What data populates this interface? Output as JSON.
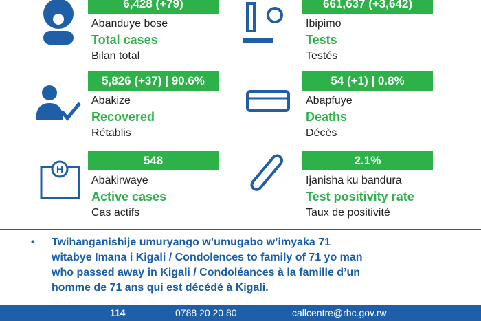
{
  "stats": [
    {
      "value": "6,428 (+79)",
      "rw": "Abanduye bose",
      "en": "Total cases",
      "fr": "Bilan total"
    },
    {
      "value": "661,637 (+3,642)",
      "rw": "Ibipimo",
      "en": "Tests",
      "fr": "Testés"
    },
    {
      "value": "5,826 (+37) | 90.6%",
      "rw": "Abakize",
      "en": "Recovered",
      "fr": "Rétablis"
    },
    {
      "value": "54 (+1) | 0.8%",
      "rw": "Abapfuye",
      "en": "Deaths",
      "fr": "Décès"
    },
    {
      "value": "548",
      "rw": "Abakirwaye",
      "en": "Active cases",
      "fr": "Cas actifs"
    },
    {
      "value": "2.1%",
      "rw": "Ijanisha ku bandura",
      "en": "Test positivity rate",
      "fr": "Taux de positivité"
    }
  ],
  "note": {
    "bullet": "•",
    "lines": [
      "Twihanganishije umuryango w’umugabo w’imyaka 71",
      "witabye Imana i Kigali / Condolences to family of 71 yo man",
      "who passed away in Kigali / Condoléances à la famille d’un",
      "homme de 71 ans qui est décédé à Kigali."
    ]
  },
  "footer": {
    "hotline": "114",
    "phone": "0788 20 20 80",
    "email": "callcentre@rbc.gov.rw"
  }
}
